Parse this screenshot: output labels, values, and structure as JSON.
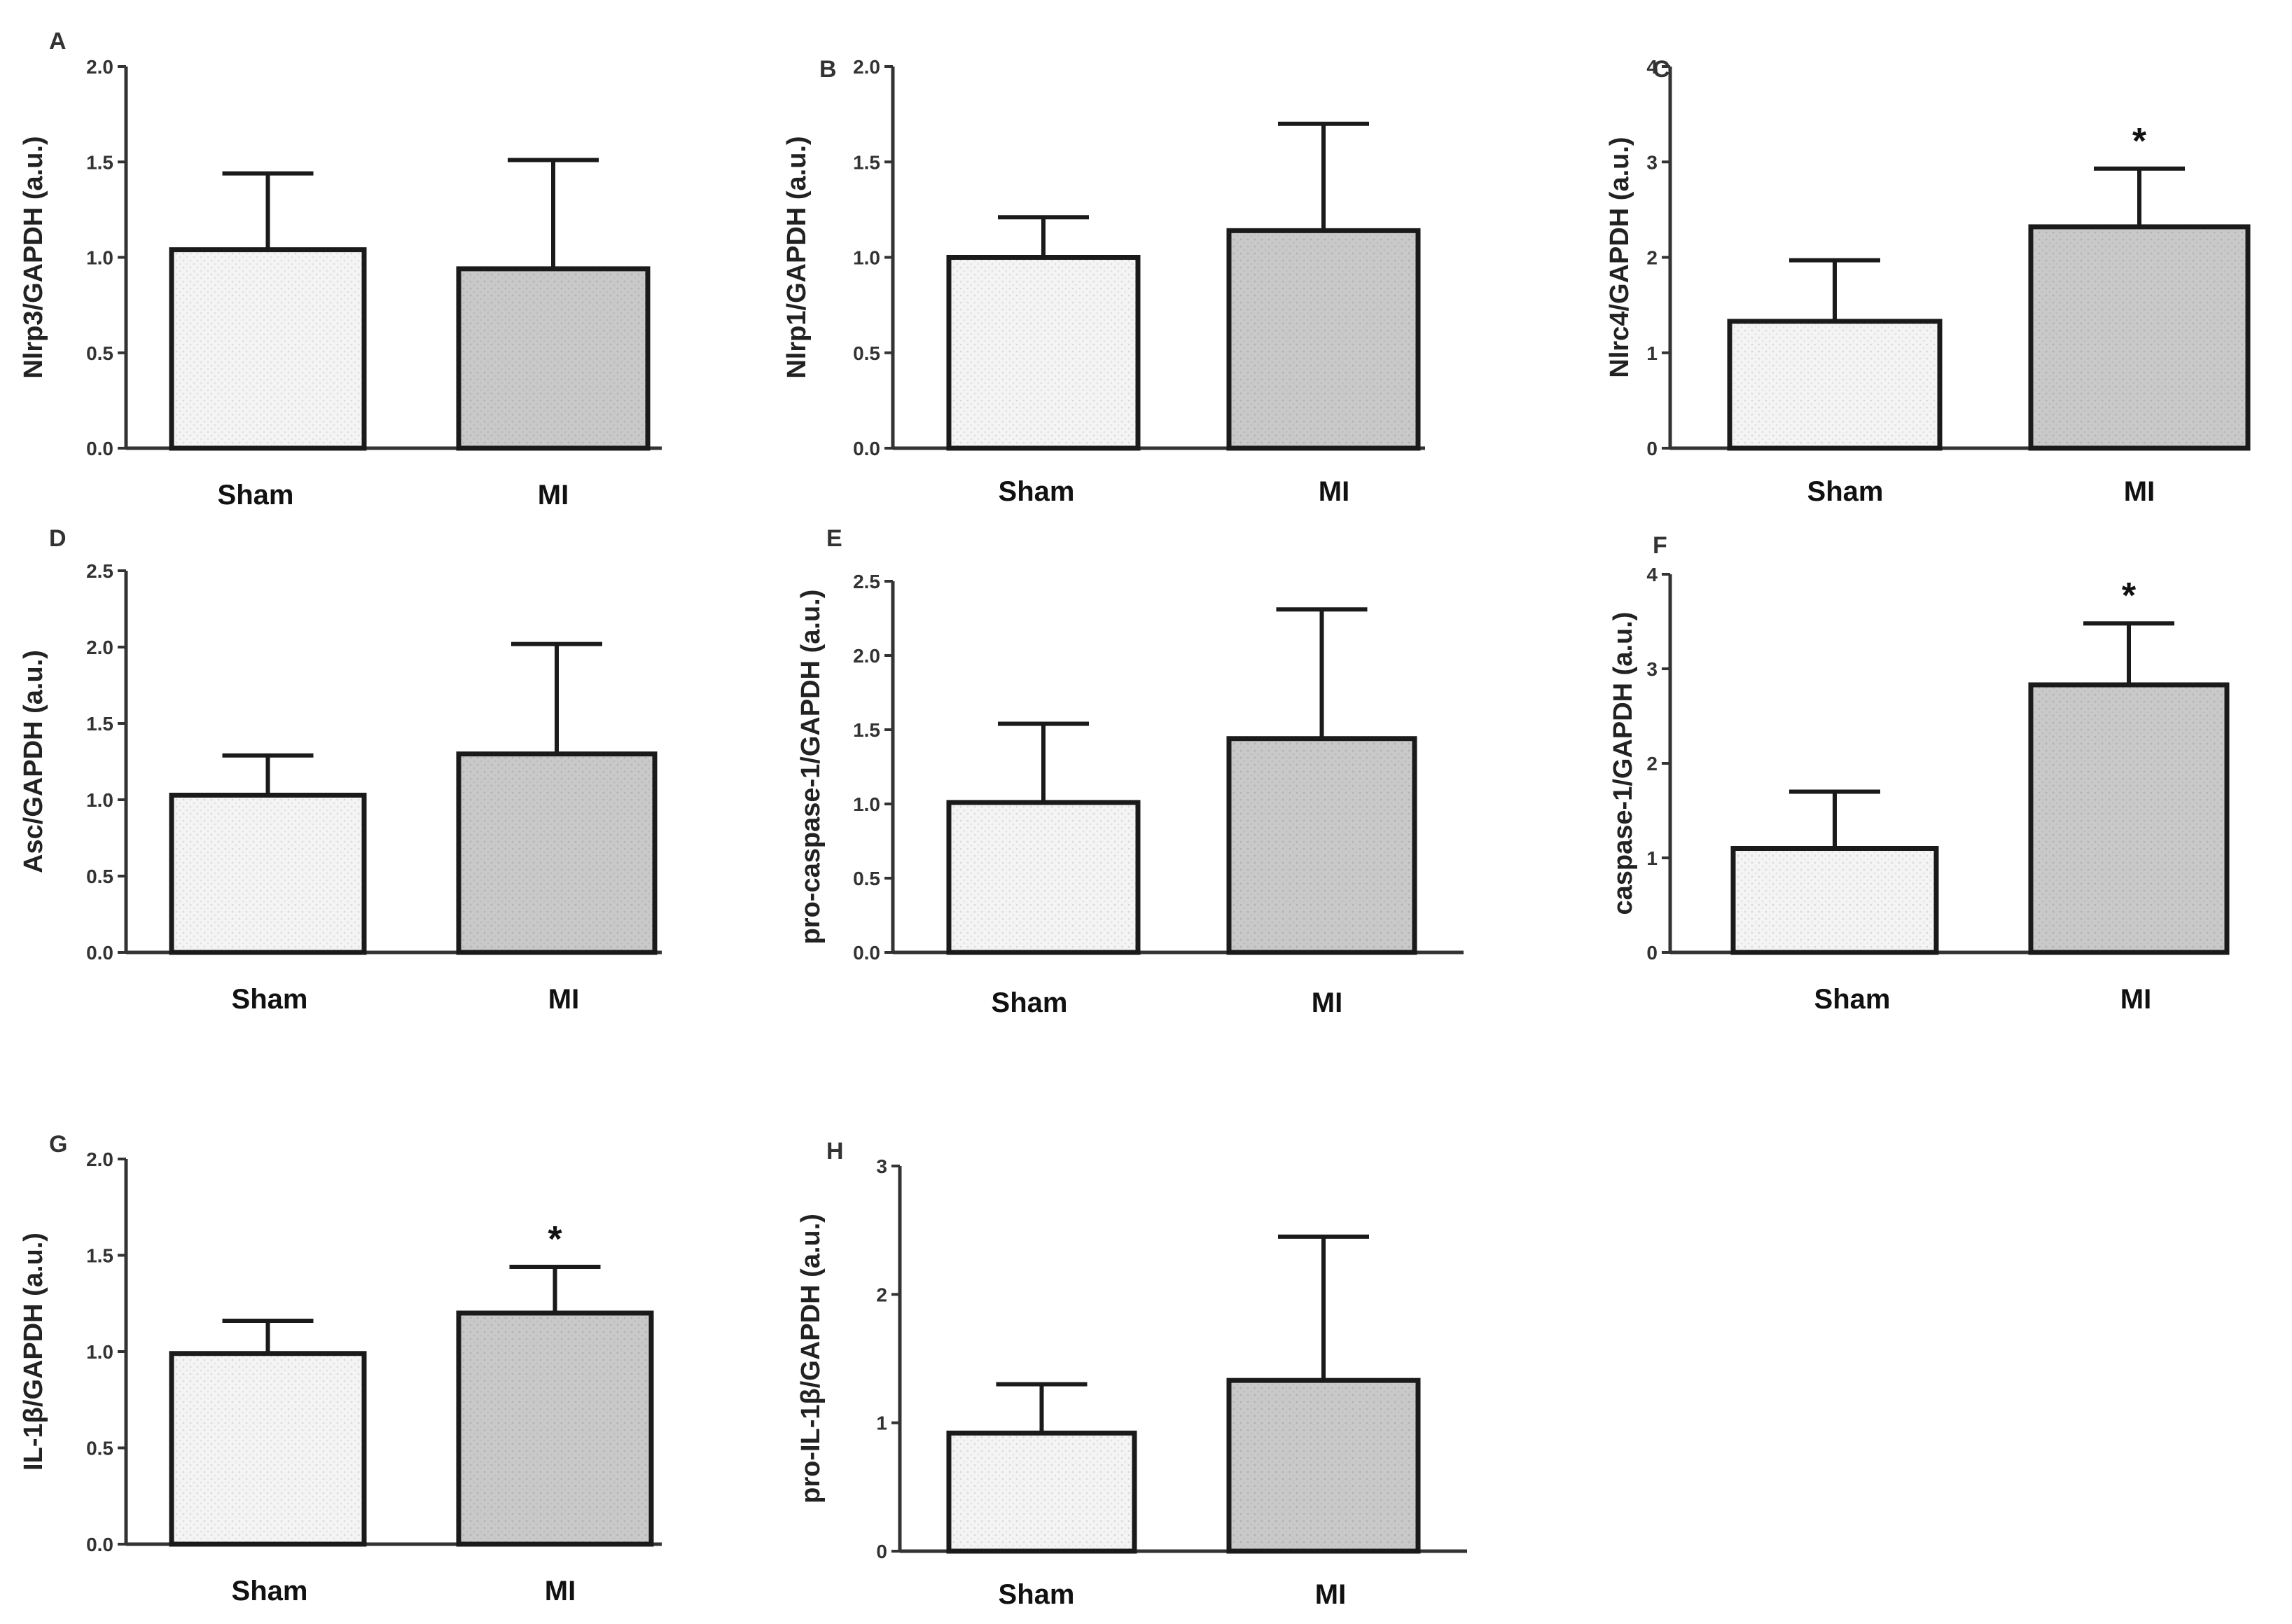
{
  "colors": {
    "sham_fill": "#f4f4f4",
    "mi_fill": "#c9c9c9",
    "ink": "#1a1a1a"
  },
  "chart_data": [
    {
      "panel": "A",
      "type": "bar",
      "ylabel": "Nlrp3/GAPDH (a.u.)",
      "ylim": [
        0,
        2.0
      ],
      "ticks": [
        "0.0",
        "0.5",
        "1.0",
        "1.5",
        "2.0"
      ],
      "categories": [
        "Sham",
        "MI"
      ],
      "values": [
        1.04,
        0.94
      ],
      "error_upper": [
        1.44,
        1.51
      ],
      "significance": [
        "",
        ""
      ]
    },
    {
      "panel": "B",
      "type": "bar",
      "ylabel": "Nlrp1/GAPDH (a.u.)",
      "ylim": [
        0,
        2.0
      ],
      "ticks": [
        "0.0",
        "0.5",
        "1.0",
        "1.5",
        "2.0"
      ],
      "categories": [
        "Sham",
        "MI"
      ],
      "values": [
        1.0,
        1.14
      ],
      "error_upper": [
        1.21,
        1.7
      ],
      "significance": [
        "",
        ""
      ]
    },
    {
      "panel": "C",
      "type": "bar",
      "ylabel": "Nlrc4/GAPDH (a.u.)",
      "ylim": [
        0,
        4
      ],
      "ticks": [
        "0",
        "1",
        "2",
        "3",
        "4"
      ],
      "categories": [
        "Sham",
        "MI"
      ],
      "values": [
        1.33,
        2.32
      ],
      "error_upper": [
        1.97,
        2.93
      ],
      "significance": [
        "",
        "*"
      ]
    },
    {
      "panel": "D",
      "type": "bar",
      "ylabel": "Asc/GAPDH (a.u.)",
      "ylim": [
        0,
        2.5
      ],
      "ticks": [
        "0.0",
        "0.5",
        "1.0",
        "1.5",
        "2.0",
        "2.5"
      ],
      "categories": [
        "Sham",
        "MI"
      ],
      "values": [
        1.03,
        1.3
      ],
      "error_upper": [
        1.29,
        2.02
      ],
      "significance": [
        "",
        ""
      ]
    },
    {
      "panel": "E",
      "type": "bar",
      "ylabel": "pro-caspase-1/GAPDH (a.u.)",
      "ylim": [
        0,
        2.5
      ],
      "ticks": [
        "0.0",
        "0.5",
        "1.0",
        "1.5",
        "2.0",
        "2.5"
      ],
      "categories": [
        "Sham",
        "MI"
      ],
      "values": [
        1.01,
        1.44
      ],
      "error_upper": [
        1.54,
        2.31
      ],
      "significance": [
        "",
        ""
      ]
    },
    {
      "panel": "F",
      "type": "bar",
      "ylabel": "caspase-1/GAPDH (a.u.)",
      "ylim": [
        0,
        4
      ],
      "ticks": [
        "0",
        "1",
        "2",
        "3",
        "4"
      ],
      "categories": [
        "Sham",
        "MI"
      ],
      "values": [
        1.1,
        2.83
      ],
      "error_upper": [
        1.7,
        3.48
      ],
      "significance": [
        "",
        "*"
      ]
    },
    {
      "panel": "G",
      "type": "bar",
      "ylabel": "IL-1β/GAPDH (a.u.)",
      "ylim": [
        0,
        2.0
      ],
      "ticks": [
        "0.0",
        "0.5",
        "1.0",
        "1.5",
        "2.0"
      ],
      "categories": [
        "Sham",
        "MI"
      ],
      "values": [
        0.99,
        1.2
      ],
      "error_upper": [
        1.16,
        1.44
      ],
      "significance": [
        "",
        "*"
      ]
    },
    {
      "panel": "H",
      "type": "bar",
      "ylabel": "pro-IL-1β/GAPDH (a.u.)",
      "ylim": [
        0,
        3
      ],
      "ticks": [
        "0",
        "1",
        "2",
        "3"
      ],
      "categories": [
        "Sham",
        "MI"
      ],
      "values": [
        0.92,
        1.33
      ],
      "error_upper": [
        1.3,
        2.45
      ],
      "significance": [
        "",
        ""
      ]
    }
  ]
}
